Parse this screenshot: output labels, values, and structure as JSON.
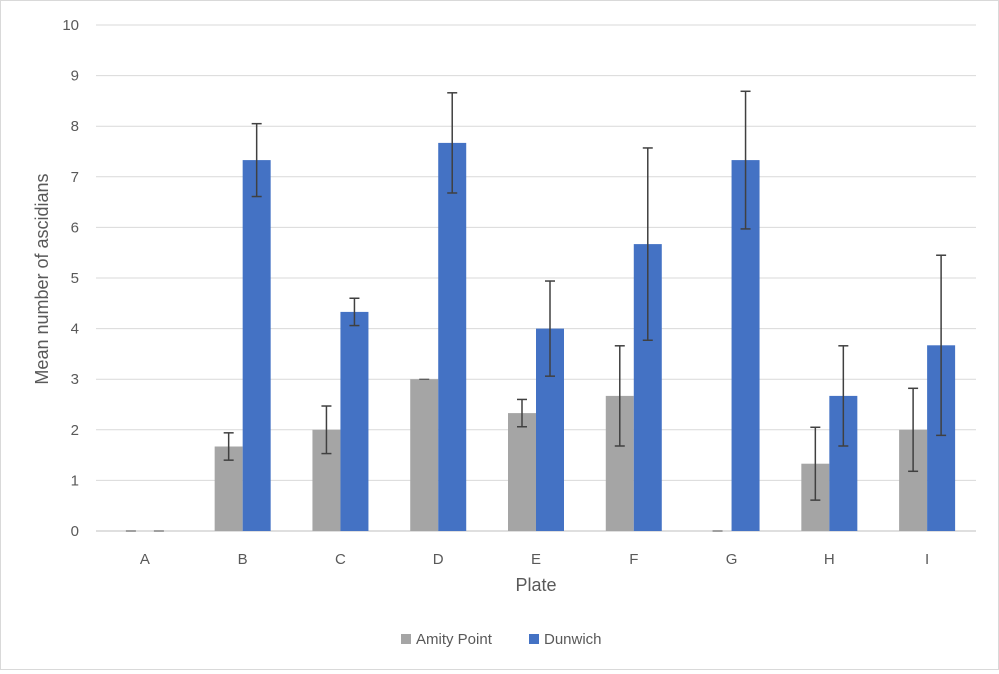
{
  "chart_data": {
    "type": "bar",
    "title": "",
    "xlabel": "Plate",
    "ylabel": "Mean number of ascidians",
    "categories": [
      "A",
      "B",
      "C",
      "D",
      "E",
      "F",
      "G",
      "H",
      "I"
    ],
    "series": [
      {
        "name": "Amity Point",
        "color": "#a5a5a5",
        "values": [
          0,
          1.67,
          2.0,
          3.0,
          2.33,
          2.67,
          0,
          1.33,
          2.0
        ],
        "error": [
          0,
          0.27,
          0.47,
          0,
          0.27,
          0.99,
          0,
          0.72,
          0.82
        ]
      },
      {
        "name": "Dunwich",
        "color": "#4472c4",
        "values": [
          0,
          7.33,
          4.33,
          7.67,
          4.0,
          5.67,
          7.33,
          2.67,
          3.67
        ],
        "error": [
          0,
          0.72,
          0.27,
          0.99,
          0.94,
          1.9,
          1.36,
          0.99,
          1.78
        ]
      }
    ],
    "ylim": [
      0,
      10
    ],
    "yticks": [
      "0",
      "1",
      "2",
      "3",
      "4",
      "5",
      "6",
      "7",
      "8",
      "9",
      "10"
    ],
    "grid": true,
    "legend": "bottom-center"
  }
}
